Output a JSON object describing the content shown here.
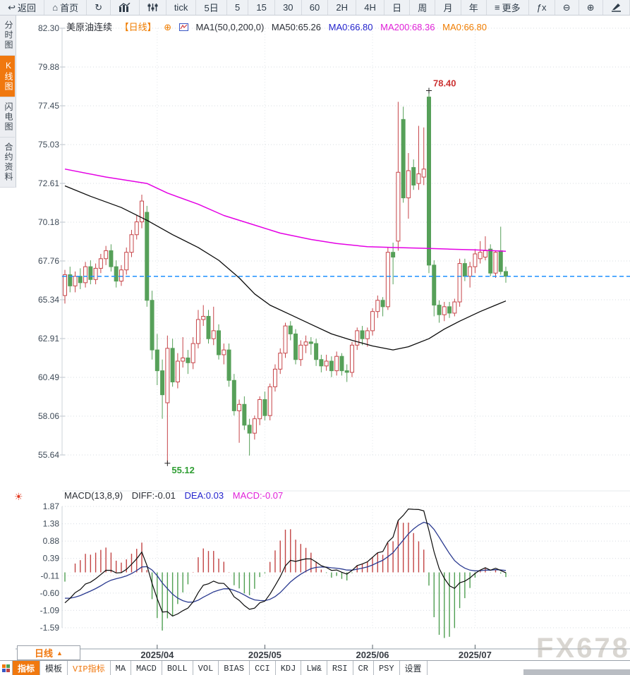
{
  "toolbar": {
    "items": [
      {
        "name": "back",
        "label": "返回",
        "icon": "back"
      },
      {
        "name": "home",
        "label": "首页",
        "icon": "home"
      },
      {
        "name": "refresh",
        "icon": "refresh"
      },
      {
        "name": "kline-chart",
        "icon": "kline"
      },
      {
        "name": "indicator-sliders",
        "icon": "sliders"
      },
      {
        "name": "tick",
        "label": "tick"
      },
      {
        "name": "5d",
        "label": "5日"
      },
      {
        "name": "m5",
        "label": "5"
      },
      {
        "name": "m15",
        "label": "15"
      },
      {
        "name": "m30",
        "label": "30"
      },
      {
        "name": "m60",
        "label": "60"
      },
      {
        "name": "h2",
        "label": "2H"
      },
      {
        "name": "h4",
        "label": "4H"
      },
      {
        "name": "day",
        "label": "日"
      },
      {
        "name": "week",
        "label": "周"
      },
      {
        "name": "month",
        "label": "月"
      },
      {
        "name": "year",
        "label": "年"
      },
      {
        "name": "more",
        "label": "更多",
        "icon": "menu"
      },
      {
        "name": "fx",
        "label": "ƒx"
      },
      {
        "name": "zoom-out",
        "icon": "zoom_out"
      },
      {
        "name": "zoom-in",
        "icon": "zoom_in"
      },
      {
        "name": "draw",
        "icon": "pen"
      }
    ]
  },
  "icons": {
    "back": "↩",
    "home": "⌂",
    "refresh": "↻",
    "menu": "≡",
    "zoom_out": "⊖",
    "zoom_in": "⊕",
    "settings_sun": "☀",
    "period_arrow": "▲",
    "plus_circle": "⊕"
  },
  "sidebar": {
    "items": [
      {
        "label": "分时图",
        "active": false
      },
      {
        "label": "K线图",
        "active": true
      },
      {
        "label": "闪电图",
        "active": false
      },
      {
        "label": "合约资料",
        "active": false
      }
    ]
  },
  "price_header": {
    "symbol": "美原油连续",
    "period_tag": "【日线】",
    "ma_settings": "MA1(50,0,200,0)",
    "ma50": "MA50:65.26",
    "ma0_blue": "MA0:66.80",
    "ma200": "MA200:68.36",
    "ma0_orange": "MA0:66.80"
  },
  "macd_header": {
    "title": "MACD(13,8,9)",
    "diff": "DIFF:-0.01",
    "dea": "DEA:0.03",
    "macd": "MACD:-0.07"
  },
  "x_axis": {
    "period_box_label": "日线",
    "months": [
      {
        "label": "2025/04",
        "index": 18
      },
      {
        "label": "2025/05",
        "index": 39
      },
      {
        "label": "2025/06",
        "index": 60
      },
      {
        "label": "2025/07",
        "index": 80
      }
    ]
  },
  "bottom_tabs": {
    "items": [
      {
        "label": "指标",
        "active": true
      },
      {
        "label": "模板"
      },
      {
        "label": "VIP指标",
        "vip": true
      },
      {
        "label": "MA"
      },
      {
        "label": "MACD"
      },
      {
        "label": "BOLL"
      },
      {
        "label": "VOL"
      },
      {
        "label": "BIAS"
      },
      {
        "label": "CCI"
      },
      {
        "label": "KDJ"
      },
      {
        "label": "LW&"
      },
      {
        "label": "RSI"
      },
      {
        "label": "CR"
      },
      {
        "label": "PSY"
      },
      {
        "label": "设置"
      }
    ]
  },
  "watermark": "FX678",
  "colors": {
    "up": "#c64448",
    "down": "#56a059",
    "ma50": "#0a0a0a",
    "ma200": "#e400e4",
    "diff": "#0a0a0a",
    "dea": "#2a3a90",
    "hist_pos": "#c24444",
    "hist_neg": "#4f9f52",
    "current_price_line": "#1e90ff",
    "accent": "#f0780f",
    "grid": "#d7dce2",
    "axis_text": "#3e4a57",
    "month_text": "#383d44",
    "high_label": "#cc3333",
    "low_label": "#2f9e33"
  },
  "chart_data": {
    "type": "candlestick+macd",
    "title": "美原油连续 日线 (WTI crude continuous, daily)",
    "price_axis_ticks": [
      82.3,
      79.88,
      77.45,
      75.03,
      72.61,
      70.18,
      67.76,
      65.34,
      62.91,
      60.49,
      58.06,
      55.64
    ],
    "macd_axis_ticks": [
      1.87,
      1.38,
      0.88,
      0.39,
      -0.11,
      -0.6,
      -1.09,
      -1.59
    ],
    "current_price": 66.8,
    "high_annotation": {
      "text": "78.40",
      "index": 71,
      "price": 78.4
    },
    "low_annotation": {
      "text": "55.12",
      "index": 20,
      "price": 55.12
    },
    "macd_params": [
      13,
      8,
      9
    ],
    "macd_display": {
      "diff": -0.01,
      "dea": 0.03,
      "macd": -0.07
    },
    "macd_seed": {
      "ema_fast_offset": -1.0,
      "ema_slow_offset": 0.1,
      "dea_init": -0.7
    },
    "candles": [
      [
        65.6,
        67.2,
        65.1,
        66.9
      ],
      [
        66.9,
        67.4,
        65.8,
        66.2
      ],
      [
        66.2,
        67.1,
        65.8,
        66.8
      ],
      [
        66.8,
        67.3,
        66.0,
        66.4
      ],
      [
        66.4,
        67.7,
        66.1,
        67.4
      ],
      [
        67.4,
        67.8,
        66.3,
        66.6
      ],
      [
        66.6,
        67.6,
        66.3,
        67.3
      ],
      [
        67.3,
        68.2,
        67.0,
        67.9
      ],
      [
        67.9,
        68.7,
        67.5,
        68.4
      ],
      [
        68.4,
        68.8,
        67.1,
        67.4
      ],
      [
        67.4,
        67.8,
        66.1,
        66.5
      ],
      [
        66.5,
        67.5,
        66.2,
        67.2
      ],
      [
        67.2,
        68.6,
        66.9,
        68.3
      ],
      [
        68.3,
        69.7,
        68.0,
        69.4
      ],
      [
        69.4,
        70.6,
        69.1,
        70.2
      ],
      [
        70.2,
        71.9,
        69.8,
        71.5
      ],
      [
        70.8,
        71.2,
        64.9,
        65.3
      ],
      [
        65.3,
        65.9,
        61.6,
        62.2
      ],
      [
        62.2,
        63.2,
        60.0,
        60.9
      ],
      [
        60.9,
        61.6,
        57.9,
        59.4
      ],
      [
        58.9,
        63.1,
        55.12,
        62.3
      ],
      [
        62.3,
        62.9,
        59.9,
        60.2
      ],
      [
        60.2,
        62.0,
        59.8,
        61.5
      ],
      [
        61.5,
        63.0,
        61.1,
        61.7
      ],
      [
        61.7,
        62.2,
        60.7,
        61.4
      ],
      [
        61.4,
        63.0,
        61.0,
        62.6
      ],
      [
        62.6,
        64.7,
        62.3,
        64.1
      ],
      [
        64.1,
        65.0,
        63.7,
        64.3
      ],
      [
        64.3,
        64.7,
        62.6,
        62.9
      ],
      [
        62.9,
        64.9,
        62.5,
        63.4
      ],
      [
        63.4,
        63.8,
        61.6,
        61.9
      ],
      [
        61.9,
        62.6,
        61.3,
        62.2
      ],
      [
        62.2,
        62.6,
        59.9,
        60.3
      ],
      [
        60.3,
        60.7,
        58.1,
        58.4
      ],
      [
        58.4,
        59.1,
        56.4,
        58.8
      ],
      [
        58.8,
        59.3,
        57.2,
        57.5
      ],
      [
        57.5,
        57.9,
        55.6,
        57.0
      ],
      [
        57.0,
        58.1,
        56.6,
        57.9
      ],
      [
        57.9,
        59.3,
        57.5,
        59.1
      ],
      [
        59.1,
        59.6,
        57.8,
        58.1
      ],
      [
        58.1,
        60.1,
        57.8,
        59.9
      ],
      [
        59.9,
        61.3,
        59.6,
        61.0
      ],
      [
        61.0,
        62.3,
        60.7,
        62.0
      ],
      [
        62.0,
        63.9,
        61.7,
        63.7
      ],
      [
        63.7,
        64.0,
        62.8,
        63.2
      ],
      [
        63.2,
        63.5,
        61.3,
        61.6
      ],
      [
        61.6,
        62.8,
        61.2,
        62.5
      ],
      [
        62.5,
        63.1,
        62.0,
        62.7
      ],
      [
        62.7,
        63.0,
        61.9,
        62.6
      ],
      [
        62.6,
        62.9,
        61.2,
        61.6
      ],
      [
        61.6,
        61.9,
        60.8,
        61.2
      ],
      [
        61.2,
        61.9,
        60.9,
        61.5
      ],
      [
        61.5,
        61.8,
        60.5,
        60.9
      ],
      [
        60.9,
        62.1,
        60.6,
        61.8
      ],
      [
        61.8,
        62.0,
        60.6,
        60.9
      ],
      [
        60.9,
        61.3,
        60.2,
        60.8
      ],
      [
        60.8,
        62.7,
        60.5,
        62.5
      ],
      [
        62.5,
        63.6,
        62.2,
        63.4
      ],
      [
        63.4,
        63.7,
        62.5,
        62.9
      ],
      [
        62.9,
        63.6,
        62.4,
        63.4
      ],
      [
        63.4,
        64.8,
        63.1,
        64.6
      ],
      [
        64.6,
        65.6,
        64.2,
        65.3
      ],
      [
        65.3,
        65.5,
        64.3,
        64.9
      ],
      [
        64.9,
        68.6,
        64.7,
        68.3
      ],
      [
        68.3,
        68.9,
        66.3,
        68.0
      ],
      [
        69.0,
        77.7,
        68.4,
        73.3
      ],
      [
        76.6,
        77.4,
        71.4,
        71.7
      ],
      [
        71.7,
        74.5,
        70.4,
        73.4
      ],
      [
        73.6,
        74.1,
        72.2,
        72.5
      ],
      [
        72.6,
        76.2,
        72.2,
        73.2
      ],
      [
        73.0,
        76.1,
        72.5,
        73.5
      ],
      [
        78.0,
        78.4,
        67.0,
        67.5
      ],
      [
        67.5,
        67.8,
        64.3,
        65.0
      ],
      [
        65.0,
        65.3,
        63.9,
        64.4
      ],
      [
        64.4,
        65.2,
        64.0,
        64.9
      ],
      [
        64.9,
        65.2,
        64.2,
        64.5
      ],
      [
        64.5,
        65.4,
        64.3,
        65.2
      ],
      [
        65.2,
        67.9,
        64.9,
        67.6
      ],
      [
        67.6,
        67.9,
        66.5,
        66.8
      ],
      [
        66.8,
        67.7,
        66.1,
        67.4
      ],
      [
        67.4,
        68.5,
        67.0,
        68.2
      ],
      [
        67.9,
        69.0,
        67.6,
        68.3
      ],
      [
        68.0,
        69.3,
        67.8,
        68.4
      ],
      [
        68.5,
        68.8,
        66.8,
        67.0
      ],
      [
        67.0,
        68.4,
        66.7,
        68.3
      ],
      [
        68.4,
        69.9,
        66.9,
        67.1
      ],
      [
        67.1,
        67.4,
        66.4,
        66.8
      ]
    ],
    "ma50_points": [
      [
        0,
        72.45
      ],
      [
        5,
        71.8
      ],
      [
        11,
        71.1
      ],
      [
        16,
        70.3
      ],
      [
        21,
        69.4
      ],
      [
        26,
        68.6
      ],
      [
        30,
        67.8
      ],
      [
        34,
        66.7
      ],
      [
        37,
        65.7
      ],
      [
        40,
        65.0
      ],
      [
        44,
        64.4
      ],
      [
        48,
        63.8
      ],
      [
        52,
        63.2
      ],
      [
        56,
        62.8
      ],
      [
        60,
        62.45
      ],
      [
        64,
        62.2
      ],
      [
        67,
        62.4
      ],
      [
        71,
        62.9
      ],
      [
        74,
        63.5
      ],
      [
        77,
        64.0
      ],
      [
        81,
        64.6
      ],
      [
        84,
        65.0
      ],
      [
        86,
        65.26
      ]
    ],
    "ma200_points": [
      [
        0,
        73.5
      ],
      [
        8,
        73.0
      ],
      [
        16,
        72.6
      ],
      [
        20,
        72.0
      ],
      [
        26,
        71.3
      ],
      [
        31,
        70.6
      ],
      [
        37,
        70.0
      ],
      [
        42,
        69.5
      ],
      [
        48,
        69.1
      ],
      [
        53,
        68.85
      ],
      [
        59,
        68.65
      ],
      [
        64,
        68.6
      ],
      [
        70,
        68.55
      ],
      [
        75,
        68.5
      ],
      [
        80,
        68.45
      ],
      [
        86,
        68.36
      ]
    ]
  }
}
